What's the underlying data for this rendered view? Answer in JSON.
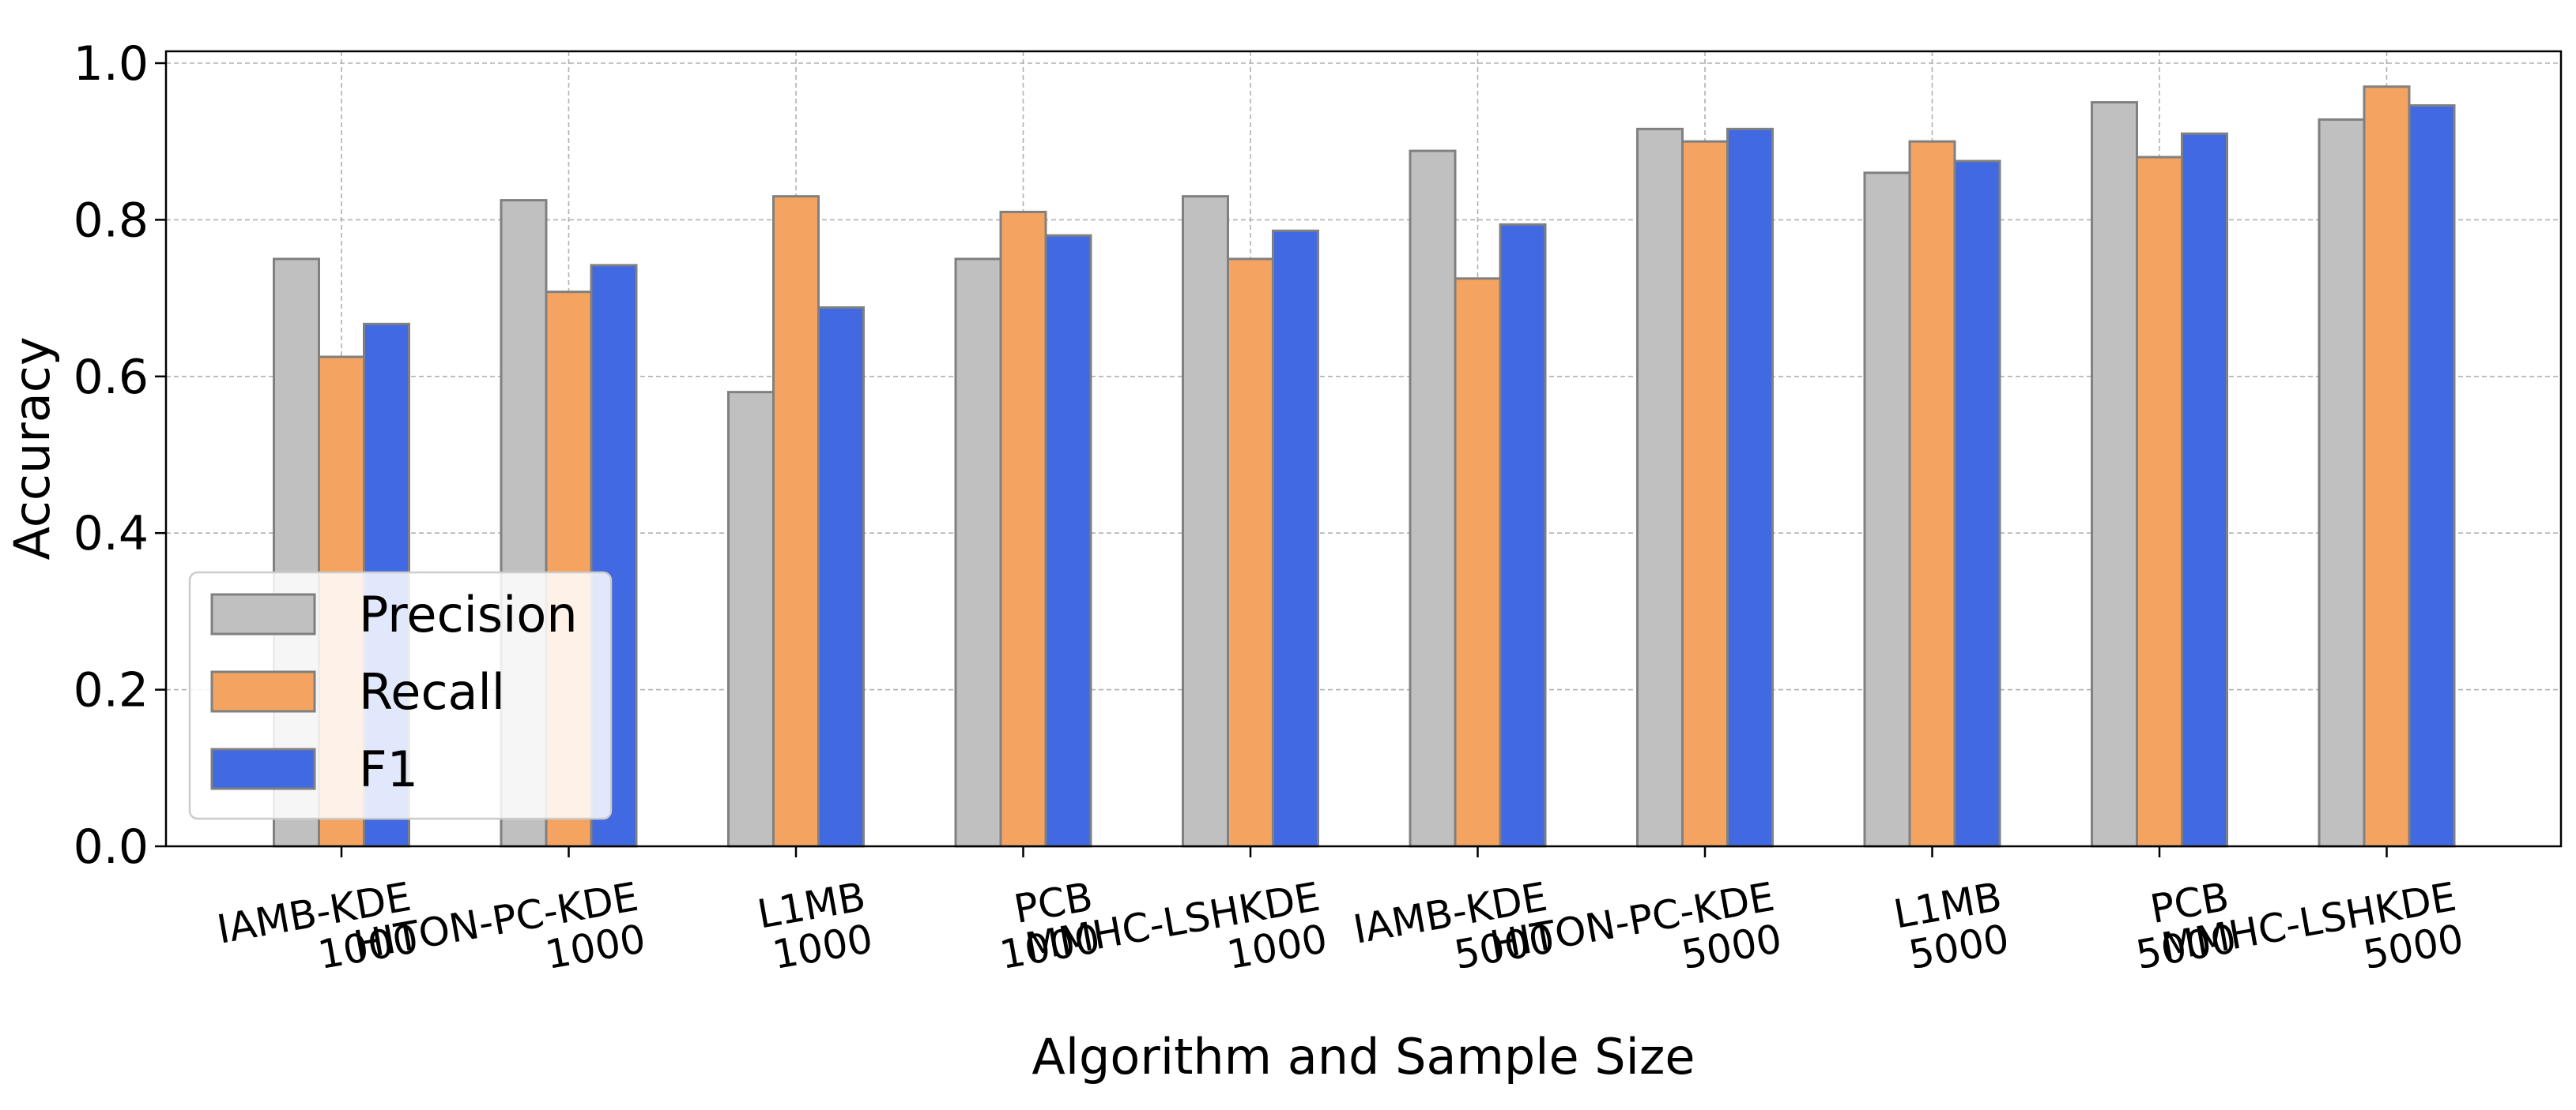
{
  "chart_data": {
    "type": "bar",
    "title": "",
    "xlabel": "Algorithm and Sample Size",
    "ylabel": "Accuracy",
    "ylim": [
      0,
      1.0
    ],
    "yticks": [
      "0.0",
      "0.2",
      "0.4",
      "0.6",
      "0.8",
      "1.0"
    ],
    "grid": true,
    "legend_position": "lower-left",
    "categories": [
      [
        "IAMB-KDE",
        "1000"
      ],
      [
        "HITON-PC-KDE",
        "1000"
      ],
      [
        "L1MB",
        "1000"
      ],
      [
        "PCB",
        "1000"
      ],
      [
        "MMHC-LSHKDE",
        "1000"
      ],
      [
        "IAMB-KDE",
        "5000"
      ],
      [
        "HITON-PC-KDE",
        "5000"
      ],
      [
        "L1MB",
        "5000"
      ],
      [
        "PCB",
        "5000"
      ],
      [
        "MMHC-LSHKDE",
        "5000"
      ]
    ],
    "series": [
      {
        "name": "Precision",
        "color": "#c0c0c0",
        "values": [
          0.75,
          0.825,
          0.58,
          0.75,
          0.83,
          0.888,
          0.916,
          0.86,
          0.95,
          0.928
        ]
      },
      {
        "name": "Recall",
        "color": "#f4a460",
        "values": [
          0.625,
          0.708,
          0.83,
          0.81,
          0.75,
          0.725,
          0.9,
          0.9,
          0.88,
          0.97
        ]
      },
      {
        "name": "F1",
        "color": "#4169e1",
        "values": [
          0.667,
          0.742,
          0.688,
          0.78,
          0.786,
          0.794,
          0.916,
          0.875,
          0.91,
          0.946
        ]
      }
    ]
  }
}
